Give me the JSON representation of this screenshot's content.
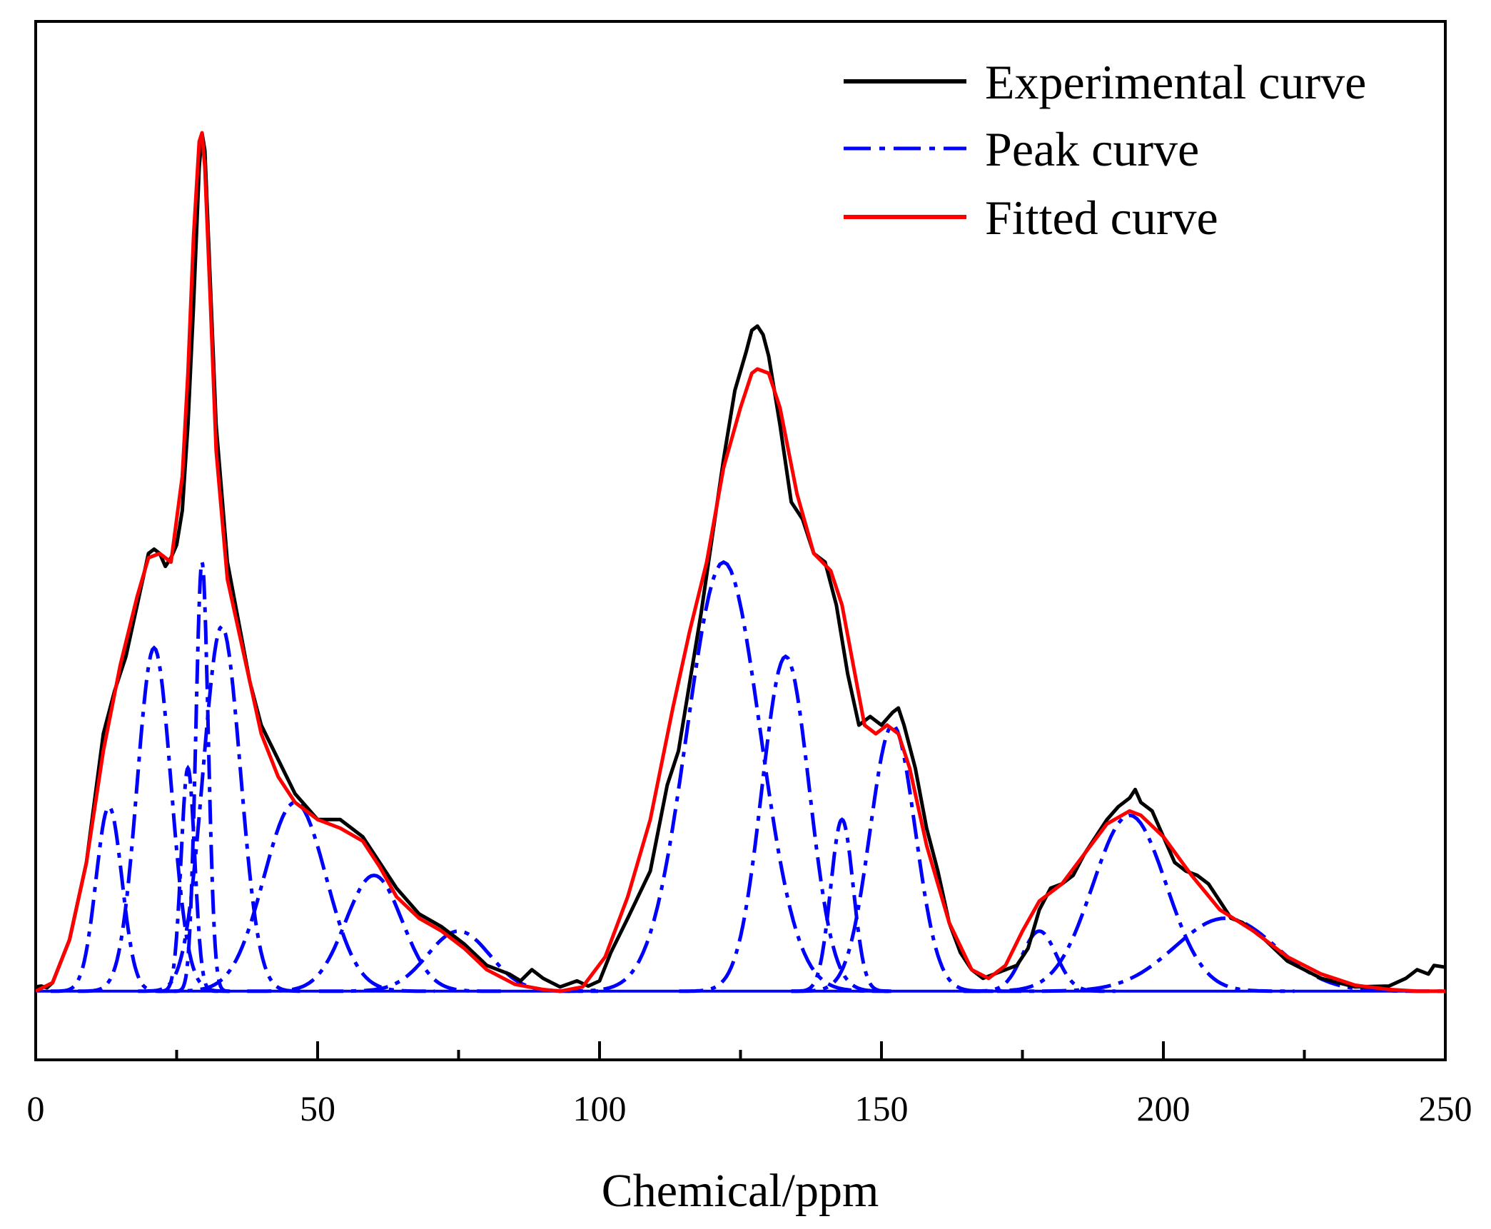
{
  "chart_data": {
    "type": "line",
    "title": "",
    "xlabel": "Chemical/ppm",
    "ylabel": "",
    "xlim": [
      0,
      250
    ],
    "ylim": [
      -0.08,
      1.13
    ],
    "x_ticks": [
      0,
      50,
      100,
      150,
      200,
      250
    ],
    "x_tick_labels": [
      "0",
      "50",
      "100",
      "150",
      "200",
      "250"
    ],
    "x_minor_ticks": [
      25,
      75,
      125,
      175,
      225
    ],
    "y_ticks_visible": false,
    "legend_position": "top-right",
    "legend": [
      {
        "label": "Experimental curve",
        "series": "experimental"
      },
      {
        "label": "Peak curve",
        "series": "peaks"
      },
      {
        "label": "Fitted curve",
        "series": "fitted"
      }
    ],
    "colors": {
      "experimental": "#000000",
      "peaks": "#0000ff",
      "fitted": "#ff0000",
      "baseline": "#0000ff"
    },
    "peaks": [
      {
        "center": 13,
        "height": 0.215,
        "sigma": 2.3
      },
      {
        "center": 21,
        "height": 0.4,
        "sigma": 3.0
      },
      {
        "center": 27,
        "height": 0.26,
        "sigma": 1.2
      },
      {
        "center": 29.5,
        "height": 0.5,
        "sigma": 1.1
      },
      {
        "center": 33,
        "height": 0.425,
        "sigma": 3.3
      },
      {
        "center": 46,
        "height": 0.22,
        "sigma": 5.5
      },
      {
        "center": 60,
        "height": 0.135,
        "sigma": 5.0
      },
      {
        "center": 75,
        "height": 0.07,
        "sigma": 5.5
      },
      {
        "center": 122,
        "height": 0.5,
        "sigma": 6.5
      },
      {
        "center": 133,
        "height": 0.39,
        "sigma": 4.2
      },
      {
        "center": 143,
        "height": 0.2,
        "sigma": 2.0
      },
      {
        "center": 152,
        "height": 0.31,
        "sigma": 4.0
      },
      {
        "center": 178,
        "height": 0.07,
        "sigma": 3.0
      },
      {
        "center": 194,
        "height": 0.205,
        "sigma": 6.5
      },
      {
        "center": 211,
        "height": 0.085,
        "sigma": 9.0
      }
    ],
    "fitted_curve": {
      "x": [
        0,
        3,
        6,
        9,
        12,
        15,
        18,
        20,
        22,
        24,
        26,
        27,
        28,
        29,
        29.5,
        30,
        31,
        32,
        34,
        36,
        38,
        40,
        43,
        46,
        50,
        54,
        58,
        61,
        64,
        68,
        72,
        76,
        80,
        85,
        90,
        93,
        97,
        101,
        105,
        109,
        113,
        116,
        119,
        122,
        125,
        127,
        128,
        130,
        132,
        135,
        138,
        141,
        143,
        145,
        147,
        149,
        151,
        153,
        155,
        158,
        162,
        166,
        169,
        172,
        175,
        178,
        182,
        186,
        190,
        194,
        196,
        200,
        205,
        210,
        216,
        222,
        228,
        234,
        240,
        245,
        250
      ],
      "y": [
        0.0,
        0.01,
        0.06,
        0.15,
        0.28,
        0.38,
        0.46,
        0.505,
        0.51,
        0.5,
        0.6,
        0.72,
        0.88,
        0.99,
        1.0,
        0.96,
        0.8,
        0.63,
        0.48,
        0.42,
        0.36,
        0.3,
        0.25,
        0.22,
        0.2,
        0.19,
        0.175,
        0.145,
        0.11,
        0.085,
        0.07,
        0.05,
        0.025,
        0.008,
        0.002,
        0.0,
        0.005,
        0.04,
        0.11,
        0.2,
        0.33,
        0.42,
        0.5,
        0.61,
        0.68,
        0.72,
        0.725,
        0.72,
        0.68,
        0.58,
        0.51,
        0.49,
        0.45,
        0.38,
        0.31,
        0.3,
        0.31,
        0.3,
        0.26,
        0.17,
        0.08,
        0.025,
        0.015,
        0.03,
        0.07,
        0.105,
        0.125,
        0.16,
        0.195,
        0.21,
        0.205,
        0.18,
        0.135,
        0.095,
        0.07,
        0.04,
        0.02,
        0.007,
        0.002,
        0.0,
        0.0
      ]
    },
    "experimental_curve": {
      "x": [
        0,
        1,
        2,
        3,
        6,
        9,
        12,
        14,
        16,
        18,
        20,
        21,
        22,
        23,
        24,
        25,
        26,
        27,
        28,
        29,
        29.5,
        30,
        31,
        32,
        34,
        36,
        38,
        40,
        43,
        46,
        50,
        54,
        58,
        61,
        64,
        68,
        72,
        76,
        80,
        84,
        86,
        88,
        90,
        93,
        96,
        98,
        100,
        102,
        105,
        109,
        112,
        114,
        116,
        118,
        120,
        122,
        124,
        126,
        127,
        128,
        129,
        130,
        132,
        134,
        136,
        138,
        140,
        142,
        144,
        146,
        148,
        150,
        152,
        153,
        154,
        156,
        158,
        160,
        162,
        164,
        166,
        168,
        170,
        172,
        174,
        176,
        178,
        180,
        182,
        184,
        186,
        188,
        190,
        192,
        194,
        195,
        196,
        198,
        200,
        202,
        204,
        206,
        208,
        210,
        212,
        214,
        216,
        218,
        222,
        228,
        234,
        240,
        243,
        245,
        247,
        248,
        250
      ],
      "y": [
        0.005,
        0.006,
        0.004,
        0.01,
        0.06,
        0.15,
        0.3,
        0.35,
        0.39,
        0.45,
        0.51,
        0.515,
        0.51,
        0.495,
        0.505,
        0.52,
        0.56,
        0.66,
        0.8,
        0.96,
        1.0,
        0.98,
        0.82,
        0.66,
        0.5,
        0.43,
        0.36,
        0.31,
        0.27,
        0.23,
        0.2,
        0.2,
        0.18,
        0.15,
        0.12,
        0.09,
        0.075,
        0.055,
        0.03,
        0.02,
        0.012,
        0.025,
        0.015,
        0.005,
        0.012,
        0.006,
        0.012,
        0.045,
        0.085,
        0.14,
        0.24,
        0.28,
        0.36,
        0.44,
        0.53,
        0.62,
        0.7,
        0.745,
        0.77,
        0.775,
        0.765,
        0.74,
        0.66,
        0.57,
        0.55,
        0.51,
        0.5,
        0.45,
        0.37,
        0.31,
        0.32,
        0.31,
        0.325,
        0.33,
        0.31,
        0.26,
        0.19,
        0.14,
        0.08,
        0.045,
        0.025,
        0.015,
        0.02,
        0.025,
        0.03,
        0.05,
        0.095,
        0.12,
        0.125,
        0.135,
        0.16,
        0.18,
        0.2,
        0.215,
        0.225,
        0.235,
        0.22,
        0.21,
        0.18,
        0.15,
        0.14,
        0.135,
        0.125,
        0.105,
        0.085,
        0.08,
        0.07,
        0.06,
        0.035,
        0.015,
        0.005,
        0.006,
        0.015,
        0.025,
        0.02,
        0.03,
        0.028
      ]
    }
  }
}
